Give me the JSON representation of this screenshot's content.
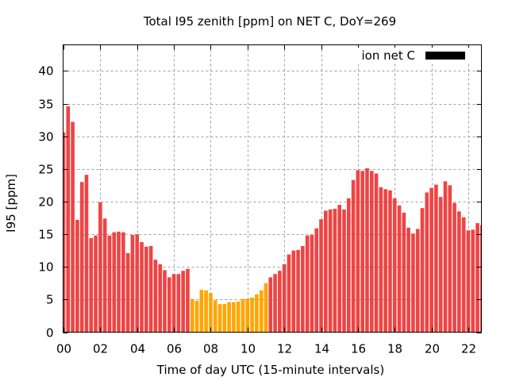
{
  "chart_data": {
    "type": "bar",
    "title": "Total I95 zenith [ppm] on NET C, DoY=269",
    "xlabel": "Time of day UTC (15-minute intervals)",
    "ylabel": "I95 [ppm]",
    "ylim": [
      0,
      44
    ],
    "xlim_hours": [
      0,
      22.7
    ],
    "grid": true,
    "legend": {
      "label": "ion net C",
      "position": "top-right",
      "color": "#000000"
    },
    "y_ticks": [
      "0",
      "5",
      "10",
      "15",
      "20",
      "25",
      "30",
      "35",
      "40"
    ],
    "y_tick_values": [
      0,
      5,
      10,
      15,
      20,
      25,
      30,
      35,
      40
    ],
    "x_ticks": [
      "00",
      "02",
      "04",
      "06",
      "08",
      "10",
      "12",
      "14",
      "16",
      "18",
      "20",
      "22"
    ],
    "x_tick_hours": [
      0,
      2,
      4,
      6,
      8,
      10,
      12,
      14,
      16,
      18,
      20,
      22
    ],
    "interval_minutes": 15,
    "colors": {
      "normal": "#ee4444",
      "highlight": "#ffa500"
    },
    "highlight_range_bar_index": [
      28,
      44
    ],
    "values": [
      30.6,
      34.6,
      32.2,
      17.2,
      23.0,
      24.1,
      14.4,
      14.8,
      19.9,
      17.4,
      14.8,
      15.3,
      15.4,
      15.3,
      12.1,
      14.9,
      15.0,
      13.8,
      13.1,
      13.2,
      11.1,
      10.4,
      9.5,
      8.4,
      8.9,
      8.9,
      9.4,
      9.7,
      5.1,
      4.8,
      6.5,
      6.4,
      6.0,
      4.9,
      4.3,
      4.3,
      4.6,
      4.6,
      4.7,
      5.1,
      5.1,
      5.3,
      5.8,
      6.4,
      7.5,
      8.4,
      8.9,
      9.4,
      10.4,
      11.9,
      12.5,
      12.6,
      13.2,
      14.8,
      14.9,
      15.9,
      17.3,
      18.6,
      18.8,
      18.9,
      19.5,
      18.8,
      20.5,
      23.3,
      24.8,
      24.7,
      25.1,
      24.7,
      24.3,
      22.2,
      21.9,
      21.7,
      20.5,
      19.4,
      18.3,
      16.0,
      15.1,
      15.8,
      19.0,
      21.4,
      22.1,
      22.6,
      20.7,
      23.1,
      22.5,
      19.8,
      18.5,
      17.6,
      15.6,
      15.7,
      16.7,
      16.4
    ]
  }
}
